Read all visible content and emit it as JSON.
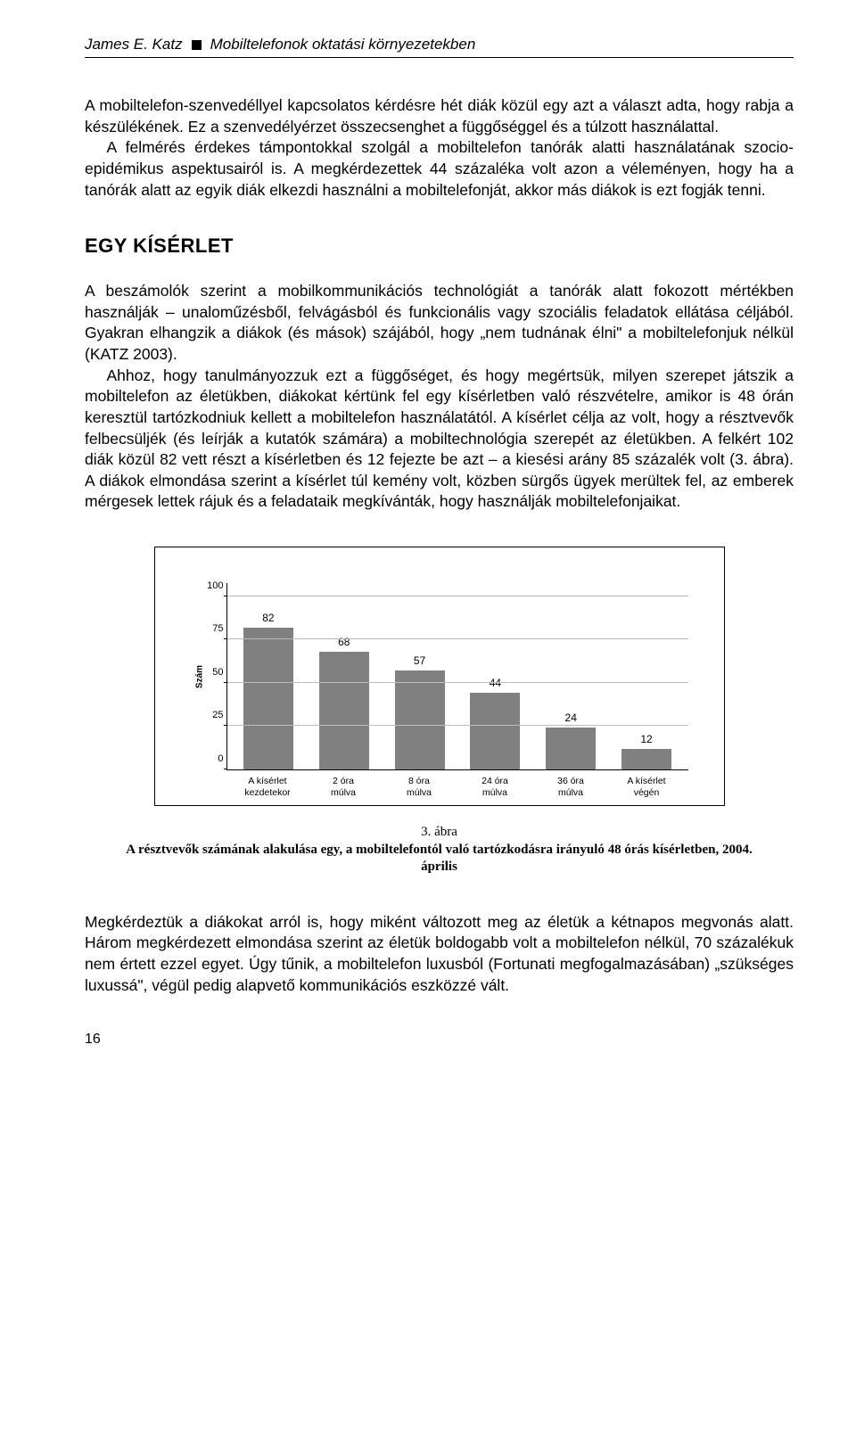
{
  "running_head": {
    "author": "James E. Katz",
    "title": "Mobiltelefonok oktatási környezetekben"
  },
  "para1": "A mobiltelefon-szenvedéllyel kapcsolatos kérdésre hét diák közül egy azt a választ adta, hogy rabja a készülékének. Ez a szenvedélyérzet összecsenghet a függőséggel és a túlzott használattal.",
  "para1b": "A felmérés érdekes támpontokkal szolgál a mobiltelefon tanórák alatti használatának szocio-epidémikus aspektusairól is. A megkérdezettek 44 százaléka volt azon a véleményen, hogy ha a tanórák alatt az egyik diák elkezdi használni a mobiltelefonját, akkor más diákok is ezt fogják tenni.",
  "section_heading": "EGY KÍSÉRLET",
  "para2": "A beszámolók szerint a mobilkommunikációs technológiát a tanórák alatt fokozott mértékben használják – unaloműzésből, felvágásból és funkcionális vagy szociális feladatok ellátása céljából. Gyakran elhangzik a diákok (és mások) szájából, hogy „nem tudnának élni\" a mobiltelefonjuk nélkül (KATZ 2003).",
  "para2b": "Ahhoz, hogy tanulmányozzuk ezt a függőséget, és hogy megértsük, milyen szerepet játszik a mobiltelefon az életükben, diákokat kértünk fel egy kísérletben való részvételre, amikor is 48 órán keresztül tartózkodniuk kellett a mobiltelefon használatától. A kísérlet célja az volt, hogy a résztvevők felbecsüljék (és leírják a kutatók számára) a mobiltechnológia szerepét az életükben. A felkért 102 diák közül 82 vett részt a kísérletben és 12 fejezte be azt – a kiesési arány 85 százalék volt (3. ábra). A diákok elmondása szerint a kísérlet túl kemény volt, közben sürgős ügyek merültek fel, az emberek mérgesek lettek rájuk és a feladataik megkívánták, hogy használják mobiltelefonjaikat.",
  "chart": {
    "type": "bar",
    "y_label": "Szám",
    "y_max": 108,
    "y_ticks": [
      0,
      25,
      50,
      75,
      100
    ],
    "gridlines": [
      25,
      50,
      75,
      100
    ],
    "bar_color": "#808080",
    "grid_color": "#bbbbbb",
    "categories": [
      "A kísérlet\nkezdetekor",
      "2 óra\nmúlva",
      "8 óra\nmúlva",
      "24 óra\nmúlva",
      "36 óra\nmúlva",
      "A kísérlet\nvégén"
    ],
    "values": [
      82,
      68,
      57,
      44,
      24,
      12
    ]
  },
  "caption": {
    "number": "3. ábra",
    "title": "A résztvevők számának alakulása egy, a mobiltelefontól való tartózkodásra irányuló 48 órás kísérletben, 2004. április"
  },
  "para3": "Megkérdeztük a diákokat arról is, hogy miként változott meg az életük a kétnapos megvonás alatt. Három megkérdezett elmondása szerint az életük boldogabb volt a mobiltelefon nélkül, 70 százalékuk nem értett ezzel egyet. Úgy tűnik, a mobiltelefon luxusból (Fortunati megfogalmazásában) „szükséges luxussá\", végül pedig alapvető kommunikációs eszközzé vált.",
  "page_number": "16"
}
